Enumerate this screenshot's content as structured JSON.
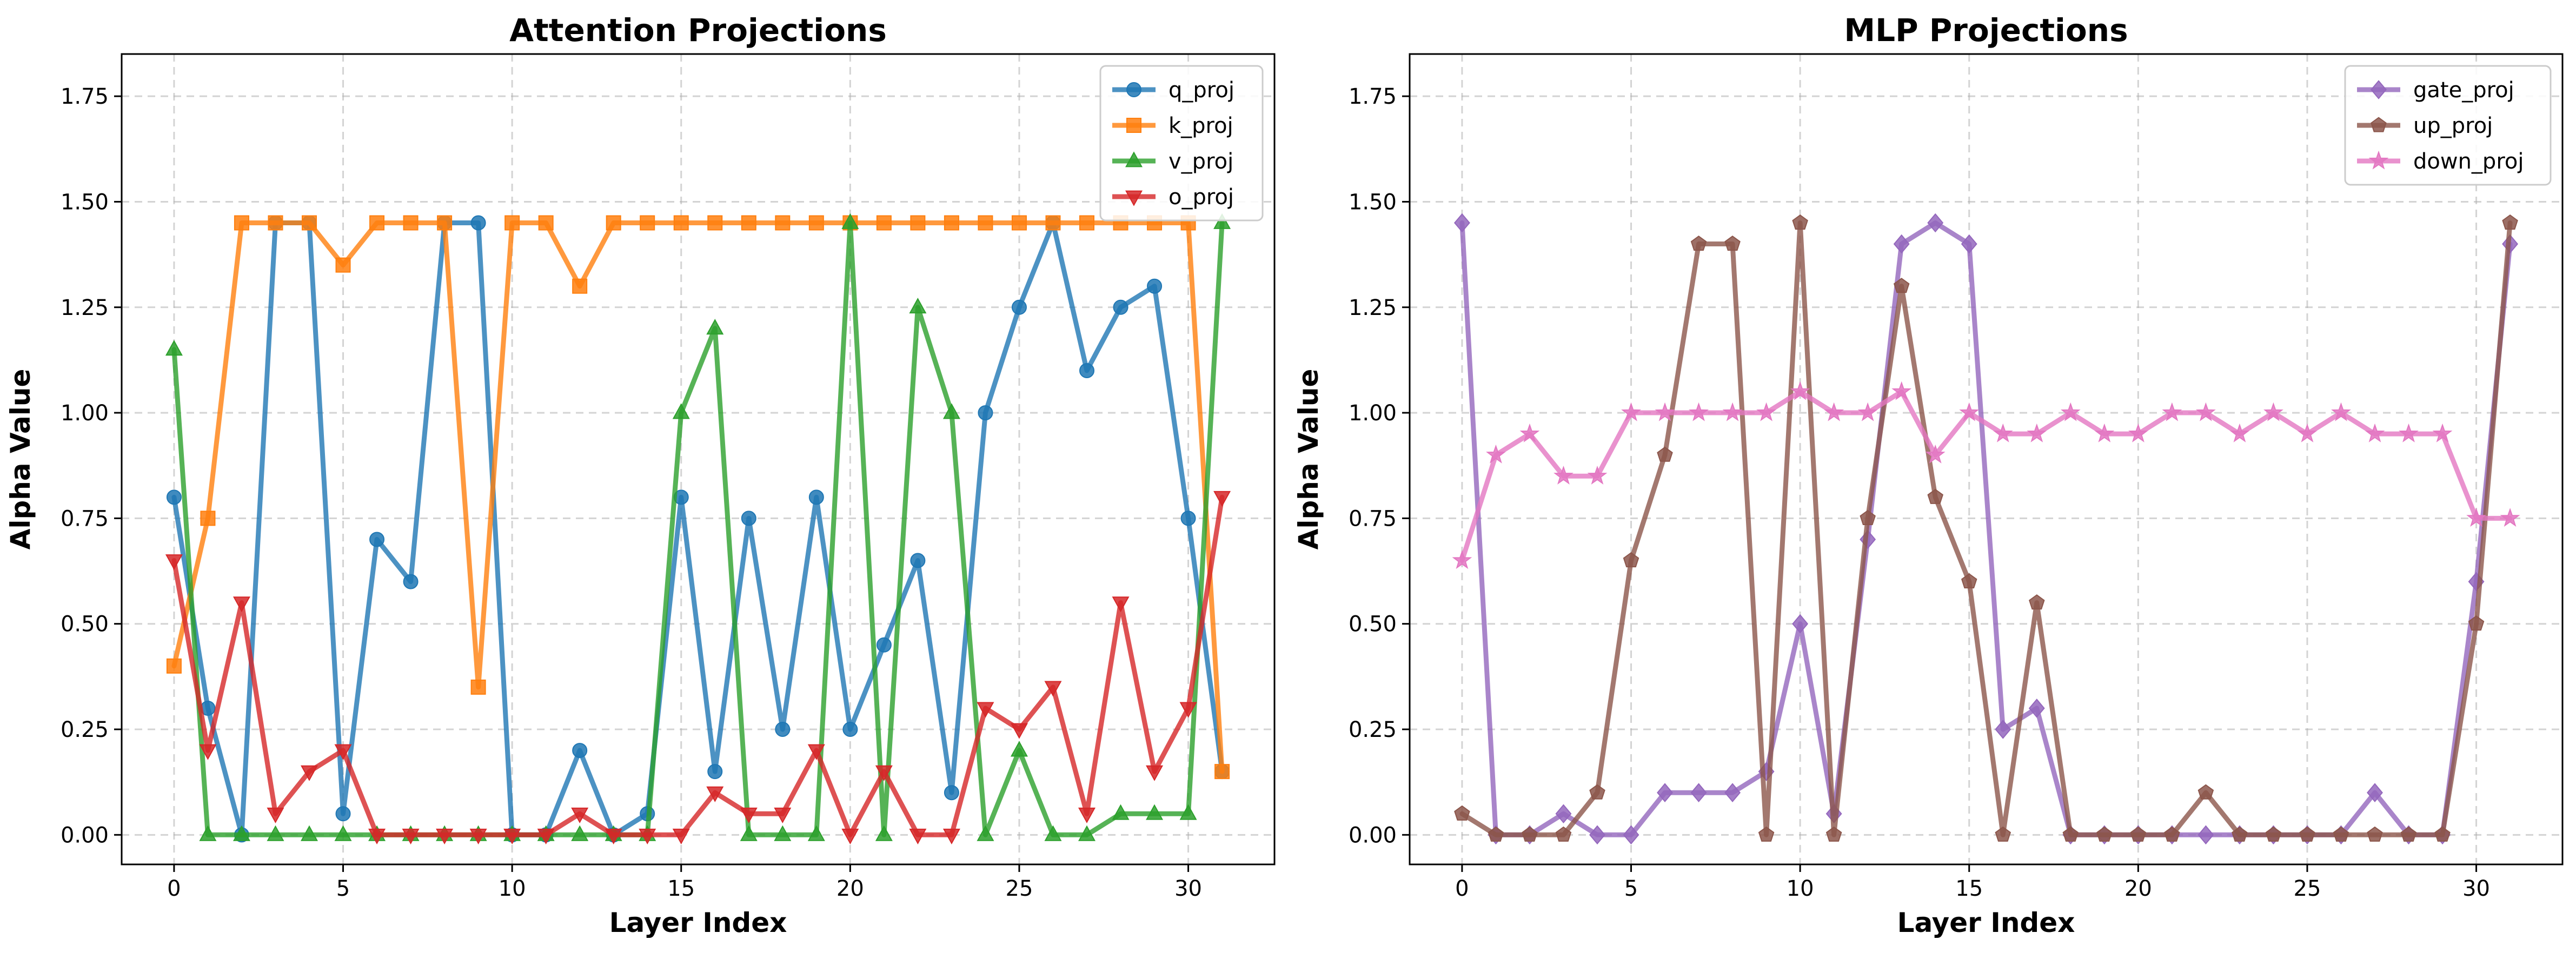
{
  "chart_data": [
    {
      "type": "line",
      "title": "Attention Projections",
      "xlabel": "Layer Index",
      "ylabel": "Alpha Value",
      "xlim": [
        -1.55,
        32.55
      ],
      "ylim": [
        -0.07,
        1.85
      ],
      "xticks": [
        "0",
        "5",
        "10",
        "15",
        "20",
        "25",
        "30"
      ],
      "yticks": [
        "0.00",
        "0.25",
        "0.50",
        "0.75",
        "1.00",
        "1.25",
        "1.50",
        "1.75"
      ],
      "grid": true,
      "legend_position": "top-right",
      "x": [
        0,
        1,
        2,
        3,
        4,
        5,
        6,
        7,
        8,
        9,
        10,
        11,
        12,
        13,
        14,
        15,
        16,
        17,
        18,
        19,
        20,
        21,
        22,
        23,
        24,
        25,
        26,
        27,
        28,
        29,
        30,
        31
      ],
      "series": [
        {
          "name": "q_proj",
          "color": "#1f77b4",
          "marker": "circle",
          "values": [
            0.8,
            0.3,
            0.0,
            1.45,
            1.45,
            0.05,
            0.7,
            0.6,
            1.45,
            1.45,
            0.0,
            0.0,
            0.2,
            0.0,
            0.05,
            0.8,
            0.15,
            0.75,
            0.25,
            0.8,
            0.25,
            0.45,
            0.65,
            0.1,
            1.0,
            1.25,
            1.45,
            1.1,
            1.25,
            1.3,
            0.75,
            0.15
          ]
        },
        {
          "name": "k_proj",
          "color": "#ff7f0e",
          "marker": "square",
          "values": [
            0.4,
            0.75,
            1.45,
            1.45,
            1.45,
            1.35,
            1.45,
            1.45,
            1.45,
            0.35,
            1.45,
            1.45,
            1.3,
            1.45,
            1.45,
            1.45,
            1.45,
            1.45,
            1.45,
            1.45,
            1.45,
            1.45,
            1.45,
            1.45,
            1.45,
            1.45,
            1.45,
            1.45,
            1.45,
            1.45,
            1.45,
            0.15
          ]
        },
        {
          "name": "v_proj",
          "color": "#2ca02c",
          "marker": "triangle-up",
          "values": [
            1.15,
            0.0,
            0.0,
            0.0,
            0.0,
            0.0,
            0.0,
            0.0,
            0.0,
            0.0,
            0.0,
            0.0,
            0.0,
            0.0,
            0.0,
            1.0,
            1.2,
            0.0,
            0.0,
            0.0,
            1.45,
            0.0,
            1.25,
            1.0,
            0.0,
            0.2,
            0.0,
            0.0,
            0.05,
            0.05,
            0.05,
            1.45
          ]
        },
        {
          "name": "o_proj",
          "color": "#d62728",
          "marker": "triangle-down",
          "values": [
            0.65,
            0.2,
            0.55,
            0.05,
            0.15,
            0.2,
            0.0,
            0.0,
            0.0,
            0.0,
            0.0,
            0.0,
            0.05,
            0.0,
            0.0,
            0.0,
            0.1,
            0.05,
            0.05,
            0.2,
            0.0,
            0.15,
            0.0,
            0.0,
            0.3,
            0.25,
            0.35,
            0.05,
            0.55,
            0.15,
            0.3,
            0.8
          ]
        }
      ]
    },
    {
      "type": "line",
      "title": "MLP Projections",
      "xlabel": "Layer Index",
      "ylabel": "Alpha Value",
      "xlim": [
        -1.55,
        32.55
      ],
      "ylim": [
        -0.07,
        1.85
      ],
      "xticks": [
        "0",
        "5",
        "10",
        "15",
        "20",
        "25",
        "30"
      ],
      "yticks": [
        "0.00",
        "0.25",
        "0.50",
        "0.75",
        "1.00",
        "1.25",
        "1.50",
        "1.75"
      ],
      "grid": true,
      "legend_position": "top-right",
      "x": [
        0,
        1,
        2,
        3,
        4,
        5,
        6,
        7,
        8,
        9,
        10,
        11,
        12,
        13,
        14,
        15,
        16,
        17,
        18,
        19,
        20,
        21,
        22,
        23,
        24,
        25,
        26,
        27,
        28,
        29,
        30,
        31
      ],
      "series": [
        {
          "name": "gate_proj",
          "color": "#9467bd",
          "marker": "diamond",
          "values": [
            1.45,
            0.0,
            0.0,
            0.05,
            0.0,
            0.0,
            0.1,
            0.1,
            0.1,
            0.15,
            0.5,
            0.05,
            0.7,
            1.4,
            1.45,
            1.4,
            0.25,
            0.3,
            0.0,
            0.0,
            0.0,
            0.0,
            0.0,
            0.0,
            0.0,
            0.0,
            0.0,
            0.1,
            0.0,
            0.0,
            0.6,
            1.4
          ]
        },
        {
          "name": "up_proj",
          "color": "#8c564b",
          "marker": "pentagon",
          "values": [
            0.05,
            0.0,
            0.0,
            0.0,
            0.1,
            0.65,
            0.9,
            1.4,
            1.4,
            0.0,
            1.45,
            0.0,
            0.75,
            1.3,
            0.8,
            0.6,
            0.0,
            0.55,
            0.0,
            0.0,
            0.0,
            0.0,
            0.1,
            0.0,
            0.0,
            0.0,
            0.0,
            0.0,
            0.0,
            0.0,
            0.5,
            1.45
          ]
        },
        {
          "name": "down_proj",
          "color": "#e377c2",
          "marker": "star",
          "values": [
            0.65,
            0.9,
            0.95,
            0.85,
            0.85,
            1.0,
            1.0,
            1.0,
            1.0,
            1.0,
            1.05,
            1.0,
            1.0,
            1.05,
            0.9,
            1.0,
            0.95,
            0.95,
            1.0,
            0.95,
            0.95,
            1.0,
            1.0,
            0.95,
            1.0,
            0.95,
            1.0,
            0.95,
            0.95,
            0.95,
            0.75,
            0.75
          ]
        }
      ]
    }
  ]
}
